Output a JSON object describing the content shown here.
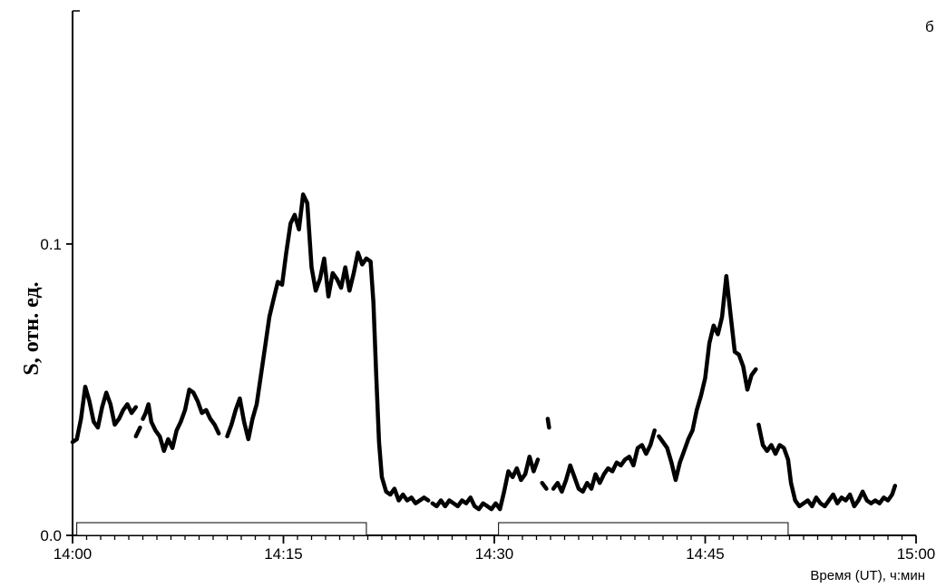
{
  "chart_data": {
    "type": "line",
    "panel_label": "б",
    "xlabel": "Время (UT), ч:мин",
    "ylabel": "S, отн. ед.",
    "xlim": [
      0,
      60
    ],
    "ylim": [
      0,
      0.18
    ],
    "x_ticks": [
      {
        "value": 0,
        "label": "14:00"
      },
      {
        "value": 15,
        "label": "14:15"
      },
      {
        "value": 30,
        "label": "14:30"
      },
      {
        "value": 45,
        "label": "14:45"
      },
      {
        "value": 60,
        "label": "15:00"
      }
    ],
    "y_ticks": [
      {
        "value": 0,
        "label": "0.0"
      },
      {
        "value": 0.1,
        "label": "0.1"
      }
    ],
    "grid": false,
    "series": [
      {
        "segments": [
          [
            [
              0.0,
              0.032
            ],
            [
              0.3,
              0.033
            ],
            [
              0.6,
              0.04
            ],
            [
              0.9,
              0.051
            ],
            [
              1.2,
              0.046
            ],
            [
              1.5,
              0.039
            ],
            [
              1.8,
              0.037
            ],
            [
              2.1,
              0.044
            ],
            [
              2.4,
              0.049
            ],
            [
              2.7,
              0.045
            ],
            [
              3.0,
              0.038
            ],
            [
              3.3,
              0.04
            ],
            [
              3.6,
              0.043
            ],
            [
              3.9,
              0.045
            ],
            [
              4.2,
              0.042
            ],
            [
              4.5,
              0.044
            ]
          ],
          [
            [
              4.5,
              0.034
            ],
            [
              4.8,
              0.037
            ]
          ],
          [
            [
              5.0,
              0.04
            ],
            [
              5.2,
              0.042
            ],
            [
              5.4,
              0.045
            ],
            [
              5.6,
              0.039
            ],
            [
              5.9,
              0.036
            ],
            [
              6.2,
              0.034
            ],
            [
              6.5,
              0.029
            ],
            [
              6.8,
              0.033
            ],
            [
              7.1,
              0.03
            ],
            [
              7.4,
              0.036
            ],
            [
              7.7,
              0.039
            ],
            [
              8.0,
              0.043
            ],
            [
              8.3,
              0.05
            ],
            [
              8.6,
              0.049
            ],
            [
              8.9,
              0.046
            ],
            [
              9.2,
              0.042
            ],
            [
              9.5,
              0.043
            ],
            [
              9.8,
              0.04
            ],
            [
              10.1,
              0.038
            ],
            [
              10.4,
              0.035
            ]
          ],
          [
            [
              11.0,
              0.034
            ],
            [
              11.3,
              0.038
            ],
            [
              11.6,
              0.043
            ],
            [
              11.9,
              0.047
            ],
            [
              12.2,
              0.039
            ],
            [
              12.5,
              0.033
            ],
            [
              12.8,
              0.04
            ],
            [
              13.1,
              0.045
            ],
            [
              13.4,
              0.055
            ],
            [
              13.7,
              0.065
            ],
            [
              14.0,
              0.075
            ],
            [
              14.3,
              0.081
            ],
            [
              14.6,
              0.087
            ],
            [
              14.9,
              0.086
            ],
            [
              15.2,
              0.097
            ],
            [
              15.5,
              0.107
            ],
            [
              15.8,
              0.11
            ],
            [
              16.1,
              0.105
            ],
            [
              16.4,
              0.117
            ],
            [
              16.7,
              0.114
            ],
            [
              17.0,
              0.092
            ],
            [
              17.3,
              0.084
            ],
            [
              17.6,
              0.088
            ],
            [
              17.9,
              0.095
            ],
            [
              18.2,
              0.082
            ],
            [
              18.5,
              0.09
            ],
            [
              18.8,
              0.088
            ],
            [
              19.1,
              0.085
            ],
            [
              19.4,
              0.092
            ],
            [
              19.7,
              0.084
            ],
            [
              20.0,
              0.09
            ],
            [
              20.3,
              0.097
            ],
            [
              20.6,
              0.093
            ],
            [
              20.9,
              0.095
            ],
            [
              21.2,
              0.094
            ],
            [
              21.4,
              0.08
            ],
            [
              21.6,
              0.055
            ],
            [
              21.8,
              0.032
            ],
            [
              22.0,
              0.02
            ],
            [
              22.3,
              0.015
            ],
            [
              22.6,
              0.014
            ],
            [
              22.9,
              0.016
            ],
            [
              23.2,
              0.012
            ],
            [
              23.5,
              0.014
            ],
            [
              23.8,
              0.012
            ],
            [
              24.1,
              0.013
            ],
            [
              24.4,
              0.011
            ],
            [
              24.7,
              0.012
            ],
            [
              25.0,
              0.013
            ],
            [
              25.3,
              0.012
            ]
          ],
          [
            [
              25.6,
              0.011
            ],
            [
              25.9,
              0.01
            ],
            [
              26.2,
              0.012
            ],
            [
              26.5,
              0.01
            ],
            [
              26.8,
              0.012
            ],
            [
              27.1,
              0.011
            ],
            [
              27.4,
              0.01
            ],
            [
              27.7,
              0.012
            ],
            [
              28.0,
              0.011
            ],
            [
              28.3,
              0.013
            ],
            [
              28.6,
              0.01
            ],
            [
              28.9,
              0.009
            ],
            [
              29.2,
              0.011
            ],
            [
              29.5,
              0.01
            ],
            [
              29.8,
              0.009
            ],
            [
              30.1,
              0.011
            ],
            [
              30.4,
              0.009
            ],
            [
              30.7,
              0.015
            ],
            [
              31.0,
              0.022
            ],
            [
              31.3,
              0.02
            ],
            [
              31.6,
              0.023
            ],
            [
              31.9,
              0.019
            ],
            [
              32.2,
              0.021
            ],
            [
              32.5,
              0.027
            ],
            [
              32.8,
              0.022
            ],
            [
              33.1,
              0.026
            ]
          ],
          [
            [
              33.4,
              0.018
            ],
            [
              33.7,
              0.016
            ]
          ],
          [
            [
              33.8,
              0.04
            ],
            [
              33.9,
              0.037
            ]
          ],
          [
            [
              34.2,
              0.016
            ],
            [
              34.5,
              0.018
            ],
            [
              34.8,
              0.015
            ],
            [
              35.1,
              0.019
            ],
            [
              35.4,
              0.024
            ],
            [
              35.7,
              0.02
            ],
            [
              36.0,
              0.016
            ],
            [
              36.3,
              0.015
            ],
            [
              36.6,
              0.018
            ],
            [
              36.9,
              0.016
            ],
            [
              37.2,
              0.021
            ],
            [
              37.5,
              0.018
            ],
            [
              37.8,
              0.021
            ],
            [
              38.1,
              0.023
            ],
            [
              38.4,
              0.022
            ],
            [
              38.7,
              0.025
            ],
            [
              39.0,
              0.024
            ],
            [
              39.3,
              0.026
            ],
            [
              39.6,
              0.027
            ],
            [
              39.9,
              0.024
            ],
            [
              40.2,
              0.03
            ],
            [
              40.5,
              0.031
            ],
            [
              40.8,
              0.028
            ],
            [
              41.1,
              0.031
            ],
            [
              41.4,
              0.036
            ]
          ],
          [
            [
              41.7,
              0.034
            ],
            [
              42.0,
              0.032
            ],
            [
              42.3,
              0.03
            ],
            [
              42.6,
              0.025
            ],
            [
              42.9,
              0.019
            ],
            [
              43.2,
              0.025
            ],
            [
              43.5,
              0.029
            ],
            [
              43.8,
              0.033
            ],
            [
              44.1,
              0.036
            ],
            [
              44.4,
              0.043
            ],
            [
              44.7,
              0.048
            ],
            [
              45.0,
              0.054
            ],
            [
              45.3,
              0.066
            ],
            [
              45.6,
              0.072
            ],
            [
              45.9,
              0.069
            ],
            [
              46.2,
              0.075
            ],
            [
              46.5,
              0.089
            ],
            [
              46.8,
              0.076
            ],
            [
              47.1,
              0.063
            ],
            [
              47.4,
              0.062
            ],
            [
              47.7,
              0.058
            ],
            [
              48.0,
              0.05
            ],
            [
              48.3,
              0.055
            ],
            [
              48.6,
              0.057
            ]
          ],
          [
            [
              48.8,
              0.038
            ],
            [
              49.1,
              0.031
            ],
            [
              49.4,
              0.029
            ],
            [
              49.7,
              0.031
            ],
            [
              50.0,
              0.028
            ],
            [
              50.3,
              0.031
            ],
            [
              50.6,
              0.03
            ],
            [
              50.9,
              0.026
            ],
            [
              51.1,
              0.018
            ],
            [
              51.4,
              0.012
            ],
            [
              51.7,
              0.01
            ],
            [
              52.0,
              0.011
            ],
            [
              52.3,
              0.012
            ],
            [
              52.6,
              0.01
            ],
            [
              52.9,
              0.013
            ],
            [
              53.2,
              0.011
            ],
            [
              53.5,
              0.01
            ],
            [
              53.8,
              0.012
            ],
            [
              54.1,
              0.014
            ],
            [
              54.4,
              0.011
            ],
            [
              54.7,
              0.013
            ],
            [
              55.0,
              0.012
            ],
            [
              55.3,
              0.014
            ],
            [
              55.6,
              0.01
            ],
            [
              55.9,
              0.012
            ],
            [
              56.2,
              0.015
            ],
            [
              56.5,
              0.012
            ],
            [
              56.8,
              0.011
            ],
            [
              57.1,
              0.012
            ],
            [
              57.4,
              0.011
            ],
            [
              57.7,
              0.013
            ],
            [
              58.0,
              0.012
            ],
            [
              58.3,
              0.014
            ],
            [
              58.5,
              0.017
            ]
          ]
        ]
      }
    ],
    "intervals": [
      {
        "start": 0.3,
        "end": 20.9
      },
      {
        "start": 30.3,
        "end": 50.9
      }
    ]
  }
}
